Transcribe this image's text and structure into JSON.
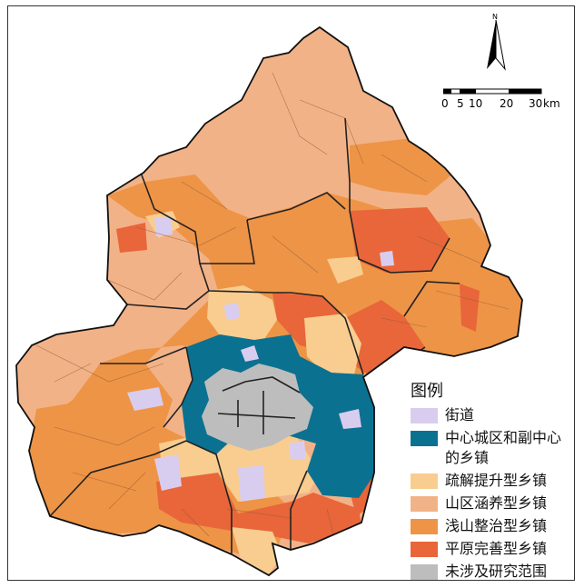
{
  "legend": {
    "title": "图例",
    "items": [
      {
        "key": "street",
        "label": "街道",
        "color": "#d9cdef"
      },
      {
        "key": "core",
        "label": "中心城区和副中心的乡镇",
        "color": "#0b7191"
      },
      {
        "key": "relief",
        "label": "疏解提升型乡镇",
        "color": "#f8cd8f"
      },
      {
        "key": "mountain",
        "label": "山区涵养型乡镇",
        "color": "#f2b287"
      },
      {
        "key": "shallow",
        "label": "浅山整治型乡镇",
        "color": "#ee9446"
      },
      {
        "key": "plain",
        "label": "平原完善型乡镇",
        "color": "#e8663a"
      },
      {
        "key": "none",
        "label": "未涉及研究范围",
        "color": "#bdbdbd"
      }
    ]
  },
  "north_arrow": {
    "label": "N"
  },
  "scale_bar": {
    "ticks": [
      "0",
      "5",
      "10",
      "20",
      "30"
    ],
    "unit": "km"
  },
  "colors": {
    "boundary": "#222222",
    "background": "#ffffff"
  }
}
